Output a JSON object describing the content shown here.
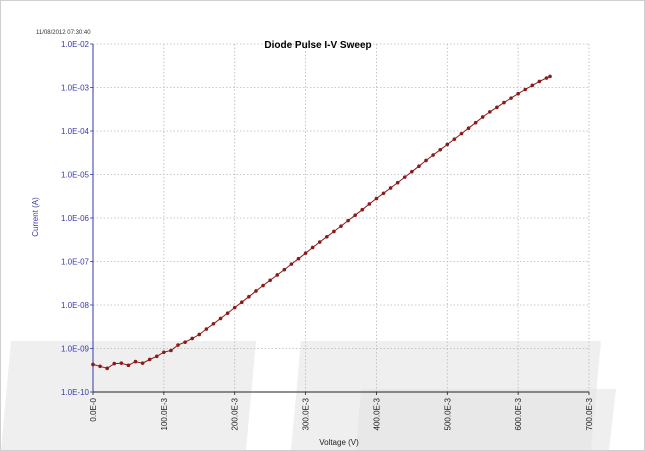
{
  "timestamp": "11/08/2012 07:30:40",
  "chart_data": {
    "type": "scatter",
    "title": "Diode Pulse I-V Sweep",
    "xlabel": "Voltage (V)",
    "ylabel": "Current (A)",
    "xlim": [
      0,
      0.7
    ],
    "ylim": [
      1e-10,
      0.01
    ],
    "y_scale": "log",
    "grid": true,
    "x_ticks": [
      0,
      0.1,
      0.2,
      0.3,
      0.4,
      0.5,
      0.6,
      0.7
    ],
    "x_tick_labels": [
      "0.0E-0",
      "100.0E-3",
      "200.0E-3",
      "300.0E-3",
      "400.0E-3",
      "500.0E-3",
      "600.0E-3",
      "700.0E-3"
    ],
    "y_ticks": [
      1e-10,
      1e-09,
      1e-08,
      1e-07,
      1e-06,
      1e-05,
      0.0001,
      0.001,
      0.01
    ],
    "y_tick_labels": [
      "1.0E-10",
      "1.0E-09",
      "1.0E-08",
      "1.0E-07",
      "1.0E-06",
      "1.0E-05",
      "1.0E-04",
      "1.0E-03",
      "1.0E-02"
    ],
    "series": [
      {
        "color": "#8b1a1a",
        "points": [
          [
            0.0,
            4.3e-10
          ],
          [
            0.01,
            3.9e-10
          ],
          [
            0.02,
            3.5e-10
          ],
          [
            0.03,
            4.5e-10
          ],
          [
            0.04,
            4.6e-10
          ],
          [
            0.05,
            4.1e-10
          ],
          [
            0.06,
            5e-10
          ],
          [
            0.07,
            4.6e-10
          ],
          [
            0.08,
            5.6e-10
          ],
          [
            0.09,
            6.6e-10
          ],
          [
            0.1,
            8.2e-10
          ],
          [
            0.11,
            9e-10
          ],
          [
            0.12,
            1.2e-09
          ],
          [
            0.13,
            1.4e-09
          ],
          [
            0.14,
            1.7e-09
          ],
          [
            0.15,
            2.1e-09
          ],
          [
            0.16,
            2.8e-09
          ],
          [
            0.17,
            3.7e-09
          ],
          [
            0.18,
            4.9e-09
          ],
          [
            0.19,
            6.5e-09
          ],
          [
            0.2,
            8.7e-09
          ],
          [
            0.21,
            1.16e-08
          ],
          [
            0.22,
            1.55e-08
          ],
          [
            0.23,
            2.1e-08
          ],
          [
            0.24,
            2.8e-08
          ],
          [
            0.25,
            3.7e-08
          ],
          [
            0.26,
            4.9e-08
          ],
          [
            0.27,
            6.5e-08
          ],
          [
            0.28,
            8.7e-08
          ],
          [
            0.29,
            1.16e-07
          ],
          [
            0.3,
            1.55e-07
          ],
          [
            0.31,
            2.1e-07
          ],
          [
            0.32,
            2.8e-07
          ],
          [
            0.33,
            3.7e-07
          ],
          [
            0.34,
            4.9e-07
          ],
          [
            0.35,
            6.5e-07
          ],
          [
            0.36,
            8.7e-07
          ],
          [
            0.37,
            1.16e-06
          ],
          [
            0.38,
            1.55e-06
          ],
          [
            0.39,
            2.1e-06
          ],
          [
            0.4,
            2.8e-06
          ],
          [
            0.41,
            3.7e-06
          ],
          [
            0.42,
            4.9e-06
          ],
          [
            0.43,
            6.5e-06
          ],
          [
            0.44,
            8.7e-06
          ],
          [
            0.45,
            1.16e-05
          ],
          [
            0.46,
            1.55e-05
          ],
          [
            0.47,
            2.1e-05
          ],
          [
            0.48,
            2.8e-05
          ],
          [
            0.49,
            3.7e-05
          ],
          [
            0.5,
            4.9e-05
          ],
          [
            0.51,
            6.5e-05
          ],
          [
            0.52,
            8.7e-05
          ],
          [
            0.53,
            0.000116
          ],
          [
            0.54,
            0.000155
          ],
          [
            0.55,
            0.00021
          ],
          [
            0.56,
            0.000275
          ],
          [
            0.57,
            0.00035
          ],
          [
            0.58,
            0.00045
          ],
          [
            0.59,
            0.00057
          ],
          [
            0.6,
            0.00072
          ],
          [
            0.61,
            0.0009
          ],
          [
            0.62,
            0.00112
          ],
          [
            0.63,
            0.00138
          ],
          [
            0.64,
            0.00165
          ],
          [
            0.645,
            0.0018
          ]
        ]
      }
    ]
  }
}
